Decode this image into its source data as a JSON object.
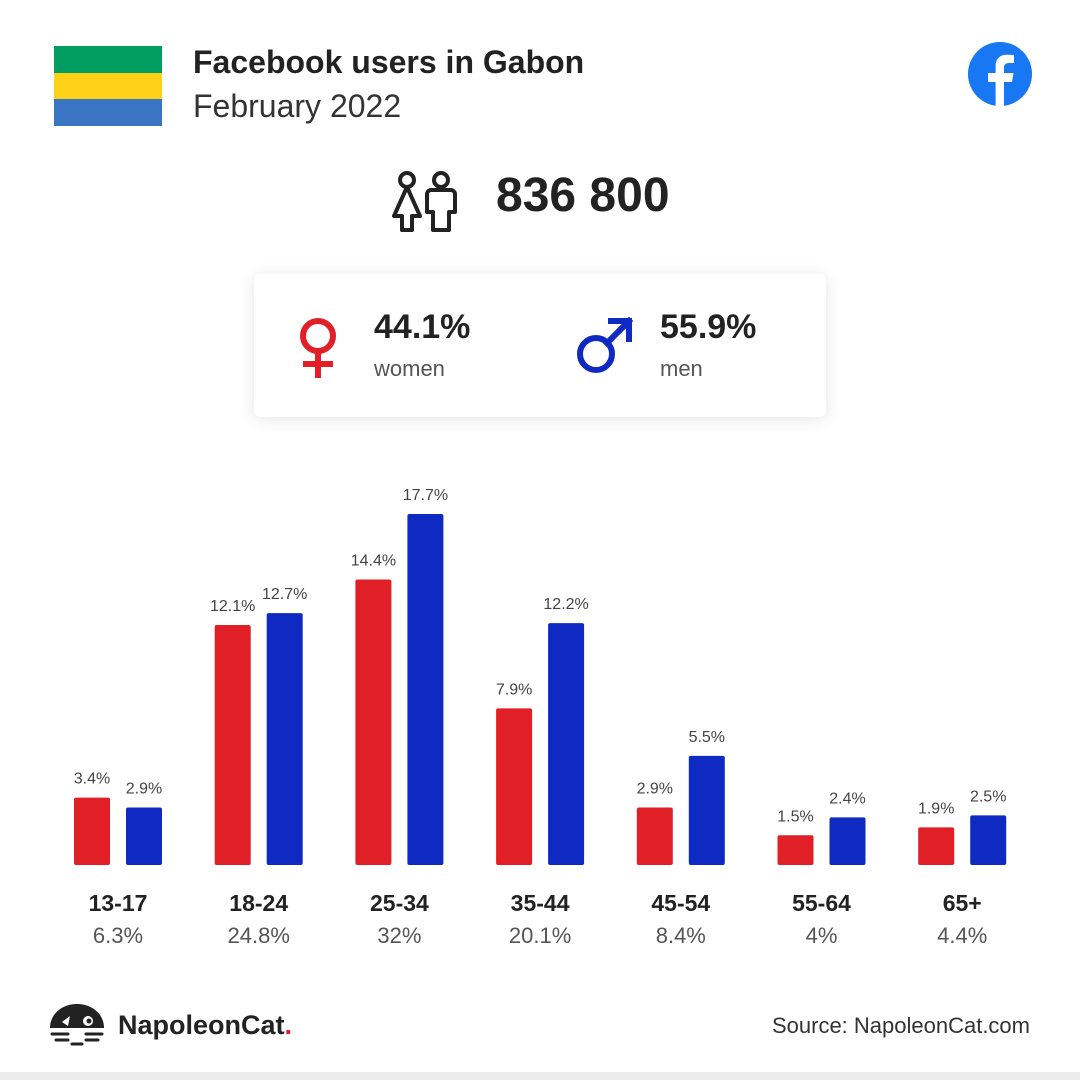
{
  "header": {
    "title": "Facebook users in Gabon",
    "subtitle": "February 2022",
    "flag_colors": [
      "#009e60",
      "#fcd116",
      "#3a75c4"
    ],
    "brand_icon": "facebook-icon",
    "brand_color": "#1877f2"
  },
  "total": {
    "icon": "users-icon",
    "value": "836 800"
  },
  "gender": {
    "women": {
      "icon": "female-icon",
      "value": "44.1%",
      "label": "women",
      "color": "#e01f26"
    },
    "men": {
      "icon": "male-icon",
      "value": "55.9%",
      "label": "men",
      "color": "#0f2ac2"
    }
  },
  "chart_data": {
    "type": "bar",
    "categories": [
      "13-17",
      "18-24",
      "25-34",
      "35-44",
      "45-54",
      "55-64",
      "65+"
    ],
    "category_totals": [
      "6.3%",
      "24.8%",
      "32%",
      "20.1%",
      "8.4%",
      "4%",
      "4.4%"
    ],
    "series": [
      {
        "values": [
          3.4,
          12.1,
          14.4,
          7.9,
          2.9,
          1.5,
          1.9
        ],
        "labels": [
          "3.4%",
          "12.1%",
          "14.4%",
          "7.9%",
          "2.9%",
          "1.5%",
          "1.9%"
        ],
        "color": "#e01f26"
      },
      {
        "values": [
          2.9,
          12.7,
          17.7,
          12.2,
          5.5,
          2.4,
          2.5
        ],
        "labels": [
          "2.9%",
          "12.7%",
          "17.7%",
          "12.2%",
          "5.5%",
          "2.4%",
          "2.5%"
        ],
        "color": "#0f2ac2"
      }
    ],
    "ylim": [
      0,
      17.7
    ],
    "grid": false,
    "legend": "none"
  },
  "footer": {
    "logo_icon": "napoleoncat-icon",
    "brand": "NapoleonCat",
    "brand_dot": ".",
    "source": "Source: NapoleonCat.com"
  }
}
